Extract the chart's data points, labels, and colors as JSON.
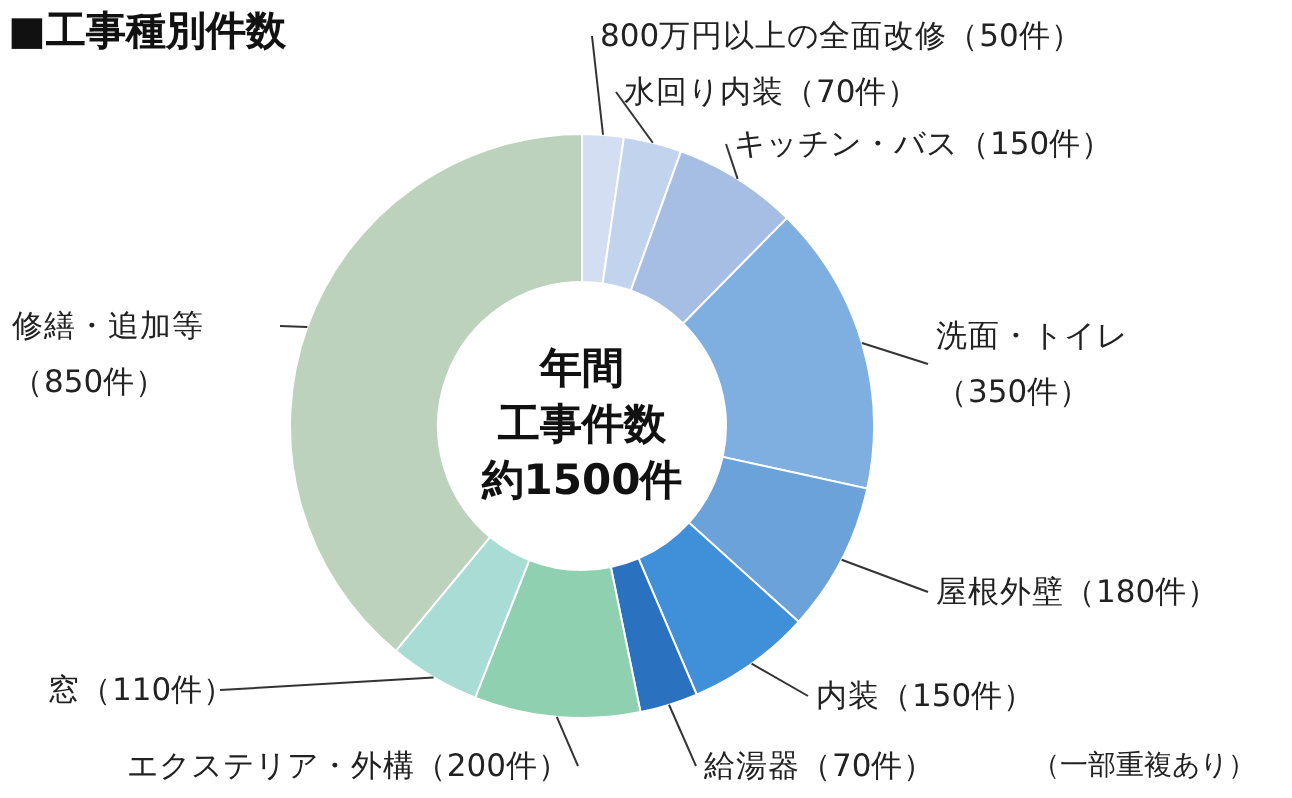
{
  "chart_data": {
    "type": "donut",
    "title": "■工事種別件数",
    "categories": [
      "800万円以上の全面改修",
      "水回り内装",
      "キッチン・バス",
      "洗面・トイレ",
      "屋根外壁",
      "内装",
      "給湯器",
      "エクステリア・外構",
      "窓",
      "修繕・追加等"
    ],
    "values": [
      50,
      70,
      150,
      350,
      180,
      150,
      70,
      200,
      110,
      850
    ],
    "value_labels": [
      "（50件）",
      "（70件）",
      "（150件）",
      "（350件）",
      "（180件）",
      "（150件）",
      "（70件）",
      "（200件）",
      "（110件）",
      "（850件）"
    ],
    "colors": [
      "#d3def2",
      "#c2d3ee",
      "#a6bee4",
      "#7eafe0",
      "#6aa2d9",
      "#3f90d8",
      "#2a72bf",
      "#8fd0b0",
      "#a9dcd4",
      "#bdd2bd"
    ],
    "annotations": [
      "年間",
      "工事件数",
      "約1500件",
      "（一部重複あり）"
    ]
  }
}
